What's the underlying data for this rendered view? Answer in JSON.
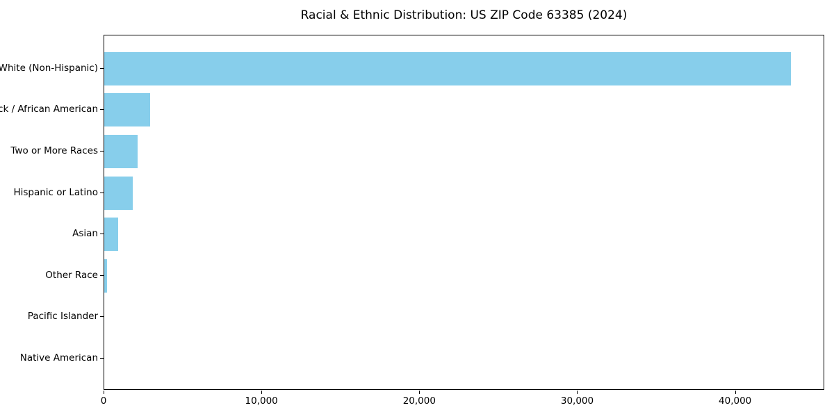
{
  "chart_data": {
    "type": "bar",
    "orientation": "horizontal",
    "title": "Racial & Ethnic Distribution: US ZIP Code 63385 (2024)",
    "categories": [
      "White (Non-Hispanic)",
      "Black / African American",
      "Two or More Races",
      "Hispanic or Latino",
      "Asian",
      "Other Race",
      "Pacific Islander",
      "Native American"
    ],
    "values": [
      43500,
      2900,
      2100,
      1800,
      900,
      180,
      0,
      0
    ],
    "xlabel": "",
    "ylabel": "",
    "xlim": [
      0,
      45650
    ],
    "x_ticks": [
      0,
      10000,
      20000,
      30000,
      40000
    ],
    "x_tick_labels": [
      "0",
      "10,000",
      "20,000",
      "30,000",
      "40,000"
    ],
    "bar_color": "#87CEEB",
    "axis_color": "#000000",
    "background_color": "#ffffff",
    "grid": false,
    "legend": "none"
  }
}
